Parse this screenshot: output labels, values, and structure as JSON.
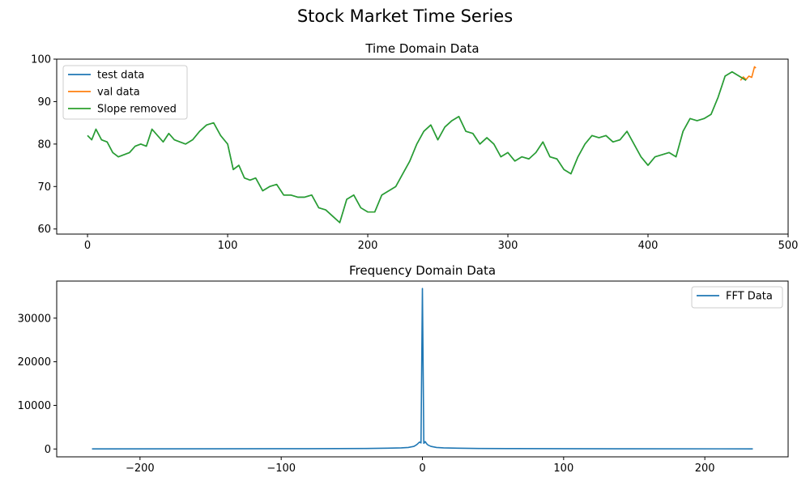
{
  "figure": {
    "title": "Stock Market Time Series"
  },
  "chart_data": [
    {
      "type": "line",
      "title": "Time Domain Data",
      "xlabel": "",
      "ylabel": "",
      "xlim": [
        -22,
        500
      ],
      "ylim": [
        58.8,
        100
      ],
      "xticks": [
        0,
        100,
        200,
        300,
        400,
        500
      ],
      "yticks": [
        60,
        70,
        80,
        90,
        100
      ],
      "grid": false,
      "legend_position": "top-left",
      "series": [
        {
          "name": "test data",
          "color": "#1f77b4",
          "x": [
            0,
            3,
            6,
            10,
            14,
            18,
            22,
            26,
            30,
            34,
            38,
            42,
            46,
            50,
            54,
            58,
            62,
            66,
            70,
            75,
            80,
            85,
            90,
            95,
            100,
            104,
            108,
            112,
            116,
            120,
            125,
            130,
            135,
            140,
            145,
            150,
            155,
            160,
            165,
            170,
            175,
            180,
            185,
            190,
            195,
            200,
            205,
            210,
            215,
            220,
            225,
            230,
            235,
            240,
            245,
            250,
            255,
            260,
            265,
            270,
            275,
            280,
            285,
            290,
            295,
            300,
            305,
            310,
            315,
            320,
            325,
            330,
            335,
            340,
            345,
            350,
            355,
            360,
            365,
            370,
            375,
            380,
            385,
            390,
            395,
            400,
            405,
            410,
            415,
            420,
            425,
            430,
            435,
            440,
            445,
            450,
            455,
            460,
            465,
            470
          ],
          "y": [
            82,
            81,
            83.5,
            81,
            80.5,
            78,
            77,
            77.5,
            78,
            79.5,
            80,
            79.5,
            83.5,
            82,
            80.5,
            82.5,
            81,
            80.5,
            80,
            81,
            83,
            84.5,
            85,
            82,
            80,
            74,
            75,
            72,
            71.5,
            72,
            69,
            70,
            70.5,
            68,
            68,
            67.5,
            67.5,
            68,
            65,
            64.5,
            63,
            61.5,
            67,
            68,
            65,
            64,
            64,
            68,
            69,
            70,
            73,
            76,
            80,
            83,
            84.5,
            81,
            84,
            85.5,
            86.5,
            83,
            82.5,
            80,
            81.5,
            80,
            77,
            78,
            76,
            77,
            76.5,
            78,
            80.5,
            77,
            76.5,
            74,
            73,
            77,
            80,
            82,
            81.5,
            82,
            80.5,
            81,
            83,
            80,
            77,
            75,
            77,
            77.5,
            78,
            77,
            83,
            86,
            85.5,
            86,
            87,
            91,
            96,
            97,
            96,
            95
          ]
        },
        {
          "name": "val data",
          "color": "#ff7f0e",
          "x": [
            466,
            468,
            470,
            472,
            474,
            476,
            477
          ],
          "y": [
            95,
            95.8,
            95.2,
            96,
            95.7,
            98.2,
            97.9
          ]
        },
        {
          "name": "Slope removed",
          "color": "#2ca02c",
          "x": [
            0,
            3,
            6,
            10,
            14,
            18,
            22,
            26,
            30,
            34,
            38,
            42,
            46,
            50,
            54,
            58,
            62,
            66,
            70,
            75,
            80,
            85,
            90,
            95,
            100,
            104,
            108,
            112,
            116,
            120,
            125,
            130,
            135,
            140,
            145,
            150,
            155,
            160,
            165,
            170,
            175,
            180,
            185,
            190,
            195,
            200,
            205,
            210,
            215,
            220,
            225,
            230,
            235,
            240,
            245,
            250,
            255,
            260,
            265,
            270,
            275,
            280,
            285,
            290,
            295,
            300,
            305,
            310,
            315,
            320,
            325,
            330,
            335,
            340,
            345,
            350,
            355,
            360,
            365,
            370,
            375,
            380,
            385,
            390,
            395,
            400,
            405,
            410,
            415,
            420,
            425,
            430,
            435,
            440,
            445,
            450,
            455,
            460,
            465,
            470
          ],
          "y": [
            82,
            81,
            83.5,
            81,
            80.5,
            78,
            77,
            77.5,
            78,
            79.5,
            80,
            79.5,
            83.5,
            82,
            80.5,
            82.5,
            81,
            80.5,
            80,
            81,
            83,
            84.5,
            85,
            82,
            80,
            74,
            75,
            72,
            71.5,
            72,
            69,
            70,
            70.5,
            68,
            68,
            67.5,
            67.5,
            68,
            65,
            64.5,
            63,
            61.5,
            67,
            68,
            65,
            64,
            64,
            68,
            69,
            70,
            73,
            76,
            80,
            83,
            84.5,
            81,
            84,
            85.5,
            86.5,
            83,
            82.5,
            80,
            81.5,
            80,
            77,
            78,
            76,
            77,
            76.5,
            78,
            80.5,
            77,
            76.5,
            74,
            73,
            77,
            80,
            82,
            81.5,
            82,
            80.5,
            81,
            83,
            80,
            77,
            75,
            77,
            77.5,
            78,
            77,
            83,
            86,
            85.5,
            86,
            87,
            91,
            96,
            97,
            96,
            95
          ]
        }
      ]
    },
    {
      "type": "line",
      "title": "Frequency Domain Data",
      "xlabel": "",
      "ylabel": "",
      "xlim": [
        -259,
        259
      ],
      "ylim": [
        -1800,
        38500
      ],
      "xticks": [
        -200,
        -100,
        0,
        100,
        200
      ],
      "yticks": [
        0,
        10000,
        20000,
        30000
      ],
      "grid": false,
      "legend_position": "top-right",
      "series": [
        {
          "name": "FFT Data",
          "color": "#1f77b4",
          "x": [
            -234,
            -150,
            -100,
            -60,
            -40,
            -25,
            -15,
            -10,
            -6,
            -4,
            -3,
            -2,
            -1,
            0,
            1,
            2,
            3,
            4,
            6,
            10,
            15,
            25,
            40,
            60,
            100,
            150,
            234
          ],
          "y": [
            30,
            50,
            60,
            90,
            120,
            180,
            250,
            350,
            600,
            1000,
            1300,
            1600,
            1400,
            36800,
            1300,
            1700,
            1200,
            900,
            600,
            350,
            250,
            180,
            120,
            90,
            60,
            50,
            30
          ]
        }
      ]
    }
  ]
}
